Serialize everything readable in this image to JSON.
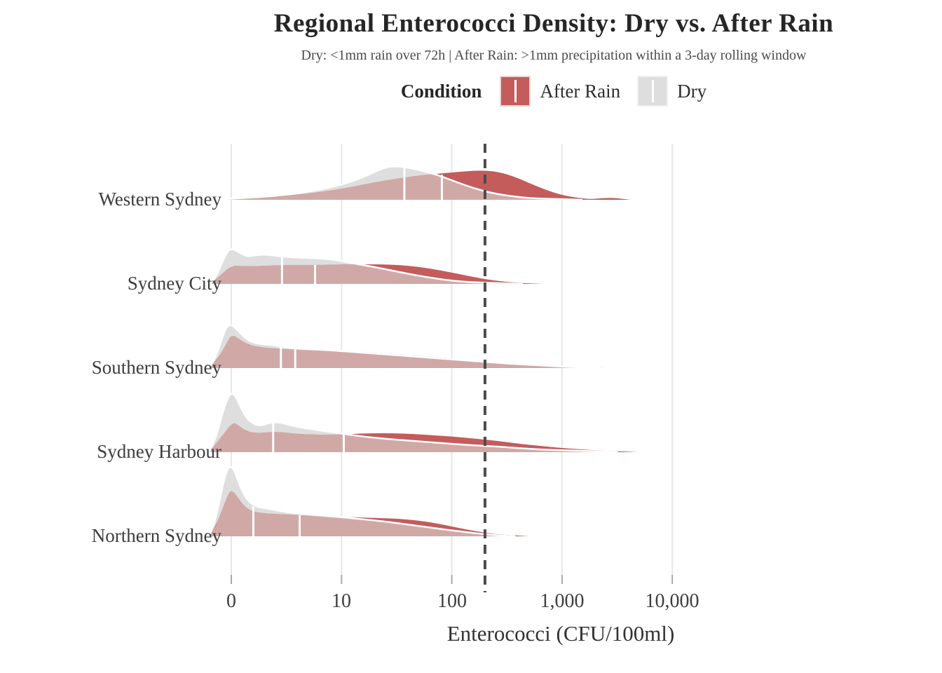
{
  "title": "Regional Enterococci Density: Dry vs. After Rain",
  "subtitle": "Dry: <1mm rain over 72h | After Rain: >1mm precipitation within a 3-day rolling window",
  "legend": {
    "title": "Condition",
    "items": [
      {
        "label": "After Rain",
        "color": "#C45C5C"
      },
      {
        "label": "Dry",
        "color": "#DEDEDE"
      }
    ]
  },
  "colors": {
    "dry_fill": "#DEDEDE",
    "rain_fill": "#C45C5C",
    "overlap_fill": "#D0A9A6",
    "contour": "#FFFFFF",
    "gridline": "#E7E7E7",
    "axis_tick": "#A9A9A9",
    "threshold_line": "#4C4C4C"
  },
  "axis": {
    "ticks": [
      "0",
      "10",
      "100",
      "1,000",
      "10,000"
    ],
    "title": "Enterococci (CFU/100ml)",
    "scale": "pseudo-log10",
    "threshold_cfu": 200
  },
  "chart_data": {
    "type": "ridgeline-density",
    "xlabel": "Enterococci (CFU/100ml)",
    "x_scale_note": "u units: decades on pseudo-log axis, u=0 at tick '0', u=1 at 10, u=2 at 100, u=3 at 1000, u=4 at 10000; h = density height in layout px",
    "threshold_cfu": 200,
    "conditions": [
      "After Rain",
      "Dry"
    ],
    "regions": [
      {
        "name": "Western Sydney",
        "dry": {
          "median_cfu": 37,
          "median_u": 1.57,
          "median_h": 47,
          "curve": [
            [
              -0.16,
              0
            ],
            [
              0.06,
              2
            ],
            [
              0.45,
              6
            ],
            [
              0.76,
              13
            ],
            [
              1.02,
              22
            ],
            [
              1.21,
              33
            ],
            [
              1.37,
              45
            ],
            [
              1.46,
              48
            ],
            [
              1.57,
              47
            ],
            [
              1.72,
              42
            ],
            [
              1.88,
              35
            ],
            [
              2.03,
              26
            ],
            [
              2.19,
              17
            ],
            [
              2.35,
              10
            ],
            [
              2.54,
              5
            ],
            [
              2.73,
              2
            ],
            [
              2.99,
              1
            ],
            [
              3.18,
              0
            ]
          ]
        },
        "after_rain": {
          "median_cfu": 81,
          "median_u": 1.91,
          "median_h": 36,
          "curve": [
            [
              -0.16,
              0
            ],
            [
              0.06,
              2
            ],
            [
              0.45,
              5
            ],
            [
              0.76,
              10
            ],
            [
              1.02,
              16
            ],
            [
              1.27,
              24
            ],
            [
              1.53,
              31
            ],
            [
              1.78,
              36
            ],
            [
              2.0,
              39
            ],
            [
              2.16,
              41
            ],
            [
              2.27,
              42
            ],
            [
              2.42,
              40
            ],
            [
              2.57,
              33
            ],
            [
              2.73,
              22
            ],
            [
              2.89,
              12
            ],
            [
              3.02,
              6
            ],
            [
              3.18,
              2
            ],
            [
              3.26,
              1
            ],
            [
              3.34,
              2
            ],
            [
              3.45,
              3
            ],
            [
              3.57,
              1
            ],
            [
              3.62,
              0
            ]
          ]
        }
      },
      {
        "name": "Sydney City",
        "dry": {
          "median_cfu": 3,
          "median_u": 0.46,
          "median_h": 38,
          "curve": [
            [
              -0.19,
              0
            ],
            [
              -0.13,
              12
            ],
            [
              -0.08,
              32
            ],
            [
              -0.03,
              48
            ],
            [
              0.01,
              50
            ],
            [
              0.06,
              46
            ],
            [
              0.14,
              39
            ],
            [
              0.22,
              41
            ],
            [
              0.31,
              42
            ],
            [
              0.41,
              40
            ],
            [
              0.54,
              38
            ],
            [
              0.73,
              37
            ],
            [
              0.92,
              35
            ],
            [
              1.08,
              30
            ],
            [
              1.27,
              25
            ],
            [
              1.46,
              19
            ],
            [
              1.65,
              13
            ],
            [
              1.84,
              8
            ],
            [
              2.03,
              4
            ],
            [
              2.23,
              2
            ],
            [
              2.45,
              1
            ],
            [
              2.64,
              0
            ]
          ]
        },
        "after_rain": {
          "median_cfu": 6,
          "median_u": 0.76,
          "median_h": 27,
          "curve": [
            [
              -0.19,
              0
            ],
            [
              -0.1,
              12
            ],
            [
              -0.03,
              22
            ],
            [
              0.03,
              26
            ],
            [
              0.16,
              25
            ],
            [
              0.32,
              26
            ],
            [
              0.57,
              27
            ],
            [
              0.83,
              27
            ],
            [
              1.08,
              28
            ],
            [
              1.34,
              28
            ],
            [
              1.53,
              27
            ],
            [
              1.72,
              24
            ],
            [
              1.91,
              19
            ],
            [
              2.1,
              13
            ],
            [
              2.29,
              7
            ],
            [
              2.48,
              3
            ],
            [
              2.67,
              1
            ],
            [
              2.83,
              0
            ]
          ]
        }
      },
      {
        "name": "Southern Sydney",
        "dry": {
          "median_cfu": 3,
          "median_u": 0.45,
          "median_h": 30,
          "curve": [
            [
              -0.2,
              0
            ],
            [
              -0.14,
              15
            ],
            [
              -0.09,
              40
            ],
            [
              -0.04,
              60
            ],
            [
              0.0,
              62
            ],
            [
              0.05,
              55
            ],
            [
              0.13,
              42
            ],
            [
              0.2,
              36
            ],
            [
              0.29,
              34
            ],
            [
              0.38,
              33
            ],
            [
              0.51,
              29
            ],
            [
              0.67,
              27
            ],
            [
              0.83,
              26
            ],
            [
              1.02,
              24
            ],
            [
              1.27,
              21
            ],
            [
              1.53,
              18
            ],
            [
              1.78,
              15
            ],
            [
              2.03,
              12
            ],
            [
              2.29,
              9
            ],
            [
              2.54,
              6
            ],
            [
              2.8,
              4
            ],
            [
              2.99,
              2
            ],
            [
              3.18,
              1
            ],
            [
              3.34,
              0
            ]
          ]
        },
        "after_rain": {
          "median_cfu": 4,
          "median_u": 0.58,
          "median_h": 27,
          "curve": [
            [
              -0.2,
              0
            ],
            [
              -0.13,
              12
            ],
            [
              -0.06,
              30
            ],
            [
              -0.01,
              45
            ],
            [
              0.03,
              46
            ],
            [
              0.08,
              40
            ],
            [
              0.16,
              33
            ],
            [
              0.25,
              30
            ],
            [
              0.38,
              28
            ],
            [
              0.57,
              26
            ],
            [
              0.76,
              26
            ],
            [
              0.95,
              25
            ],
            [
              1.21,
              23
            ],
            [
              1.46,
              20
            ],
            [
              1.72,
              17
            ],
            [
              1.97,
              14
            ],
            [
              2.23,
              10
            ],
            [
              2.48,
              7
            ],
            [
              2.73,
              4
            ],
            [
              2.99,
              2
            ],
            [
              3.21,
              1
            ],
            [
              3.37,
              0
            ]
          ]
        }
      },
      {
        "name": "Sydney Harbour",
        "dry": {
          "median_cfu": 2.4,
          "median_u": 0.38,
          "median_h": 43,
          "curve": [
            [
              -0.2,
              0
            ],
            [
              -0.14,
              20
            ],
            [
              -0.09,
              50
            ],
            [
              -0.04,
              75
            ],
            [
              0.0,
              85
            ],
            [
              0.04,
              80
            ],
            [
              0.09,
              62
            ],
            [
              0.15,
              46
            ],
            [
              0.22,
              39
            ],
            [
              0.27,
              38
            ],
            [
              0.33,
              41
            ],
            [
              0.39,
              43
            ],
            [
              0.46,
              42
            ],
            [
              0.54,
              38
            ],
            [
              0.64,
              35
            ],
            [
              0.76,
              32
            ],
            [
              0.89,
              29
            ],
            [
              1.02,
              26
            ],
            [
              1.21,
              22
            ],
            [
              1.4,
              19
            ],
            [
              1.65,
              16
            ],
            [
              1.91,
              13
            ],
            [
              2.16,
              10
            ],
            [
              2.42,
              8
            ],
            [
              2.67,
              5
            ],
            [
              2.92,
              3
            ],
            [
              3.18,
              2
            ],
            [
              3.37,
              1
            ],
            [
              3.5,
              0
            ]
          ]
        },
        "after_rain": {
          "median_cfu": 10,
          "median_u": 1.02,
          "median_h": 25,
          "curve": [
            [
              -0.2,
              0
            ],
            [
              -0.13,
              14
            ],
            [
              -0.06,
              28
            ],
            [
              -0.01,
              38
            ],
            [
              0.03,
              42
            ],
            [
              0.08,
              36
            ],
            [
              0.14,
              30
            ],
            [
              0.22,
              27
            ],
            [
              0.31,
              28
            ],
            [
              0.39,
              29
            ],
            [
              0.48,
              28
            ],
            [
              0.6,
              26
            ],
            [
              0.76,
              25
            ],
            [
              0.95,
              25
            ],
            [
              1.08,
              26
            ],
            [
              1.27,
              27
            ],
            [
              1.46,
              27
            ],
            [
              1.65,
              26
            ],
            [
              1.84,
              24
            ],
            [
              2.03,
              22
            ],
            [
              2.23,
              19
            ],
            [
              2.42,
              16
            ],
            [
              2.61,
              12
            ],
            [
              2.8,
              9
            ],
            [
              2.99,
              6
            ],
            [
              3.18,
              4
            ],
            [
              3.37,
              2
            ],
            [
              3.56,
              1
            ],
            [
              3.69,
              0
            ]
          ]
        }
      },
      {
        "name": "Northern Sydney",
        "dry": {
          "median_cfu": 1.6,
          "median_u": 0.2,
          "median_h": 43,
          "curve": [
            [
              -0.2,
              0
            ],
            [
              -0.15,
              20
            ],
            [
              -0.1,
              55
            ],
            [
              -0.06,
              85
            ],
            [
              -0.02,
              100
            ],
            [
              0.02,
              97
            ],
            [
              0.06,
              80
            ],
            [
              0.11,
              60
            ],
            [
              0.17,
              48
            ],
            [
              0.22,
              43
            ],
            [
              0.27,
              41
            ],
            [
              0.35,
              39
            ],
            [
              0.45,
              36
            ],
            [
              0.57,
              33
            ],
            [
              0.7,
              31
            ],
            [
              0.86,
              29
            ],
            [
              1.02,
              27
            ],
            [
              1.21,
              24
            ],
            [
              1.4,
              21
            ],
            [
              1.59,
              17
            ],
            [
              1.78,
              13
            ],
            [
              1.97,
              9
            ],
            [
              2.13,
              6
            ],
            [
              2.29,
              3
            ],
            [
              2.45,
              1
            ],
            [
              2.57,
              0
            ]
          ]
        },
        "after_rain": {
          "median_cfu": 4,
          "median_u": 0.62,
          "median_h": 30,
          "curve": [
            [
              -0.2,
              0
            ],
            [
              -0.14,
              15
            ],
            [
              -0.09,
              35
            ],
            [
              -0.04,
              55
            ],
            [
              -0.01,
              65
            ],
            [
              0.03,
              62
            ],
            [
              0.08,
              50
            ],
            [
              0.14,
              40
            ],
            [
              0.2,
              35
            ],
            [
              0.29,
              33
            ],
            [
              0.38,
              32
            ],
            [
              0.51,
              31
            ],
            [
              0.64,
              30
            ],
            [
              0.79,
              29
            ],
            [
              0.95,
              28
            ],
            [
              1.14,
              27
            ],
            [
              1.34,
              26
            ],
            [
              1.53,
              25
            ],
            [
              1.72,
              22
            ],
            [
              1.88,
              18
            ],
            [
              2.03,
              13
            ],
            [
              2.19,
              8
            ],
            [
              2.35,
              4
            ],
            [
              2.48,
              2
            ],
            [
              2.61,
              1
            ],
            [
              2.7,
              0
            ]
          ]
        }
      }
    ]
  }
}
